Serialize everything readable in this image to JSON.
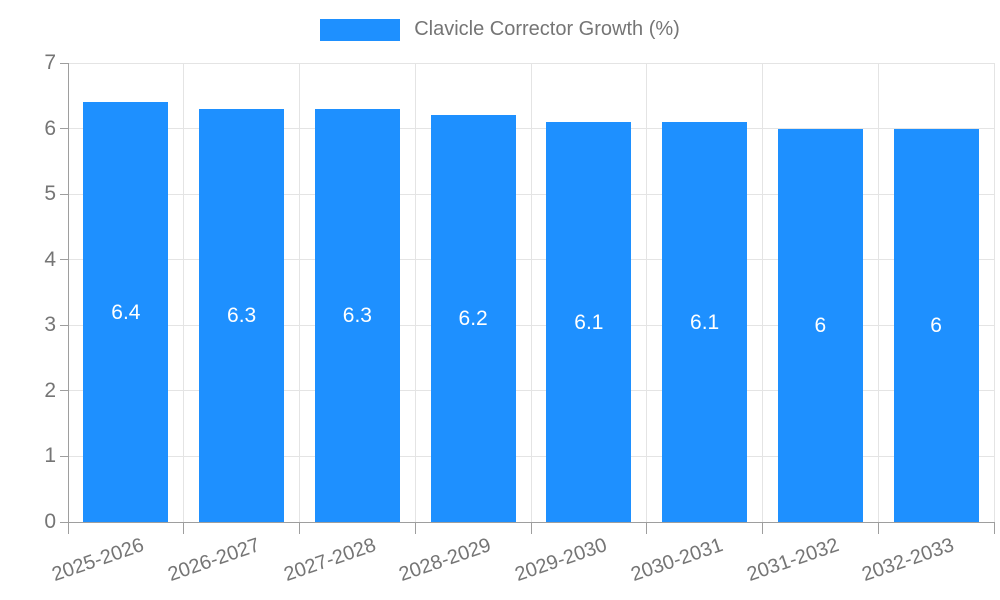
{
  "legend": {
    "label": "Clavicle Corrector Growth (%)",
    "swatch_color": "#1E90FF"
  },
  "chart_data": {
    "type": "bar",
    "title": "Clavicle Corrector Growth (%)",
    "categories": [
      "2025-2026",
      "2026-2027",
      "2027-2028",
      "2028-2029",
      "2029-2030",
      "2030-2031",
      "2031-2032",
      "2032-2033"
    ],
    "values": [
      6.4,
      6.3,
      6.3,
      6.2,
      6.1,
      6.1,
      6,
      6
    ],
    "bar_labels": [
      "6.4",
      "6.3",
      "6.3",
      "6.2",
      "6.1",
      "6.1",
      "6",
      "6"
    ],
    "xlabel": "",
    "ylabel": "",
    "ylim": [
      0,
      7
    ],
    "yticks": [
      0,
      1,
      2,
      3,
      4,
      5,
      6,
      7
    ],
    "grid": true,
    "legend_position": "top",
    "colors": {
      "bar": "#1E90FF",
      "bar_label": "#FFFFFF",
      "axis_text": "#757575",
      "grid_line": "#E4E4E4",
      "axis_line": "#9E9E9E"
    }
  }
}
